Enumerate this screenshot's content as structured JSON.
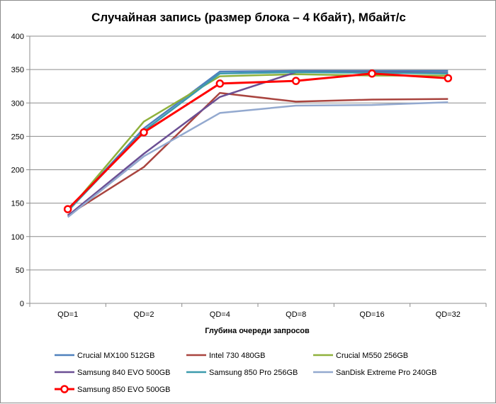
{
  "chart_data": {
    "type": "line",
    "title": "Случайная запись (размер блока – 4 Кбайт), Мбайт/с",
    "xlabel": "Глубина очереди запросов",
    "ylabel": "",
    "categories": [
      "QD=1",
      "QD=2",
      "QD=4",
      "QD=8",
      "QD=16",
      "QD=32"
    ],
    "ylim": [
      0,
      400
    ],
    "yticks": [
      0,
      50,
      100,
      150,
      200,
      250,
      300,
      350,
      400
    ],
    "grid": true,
    "legend_position": "bottom",
    "series": [
      {
        "name": "Crucial MX100 512GB",
        "color": "#4f81bd",
        "values": [
          139,
          262,
          347,
          348,
          348,
          348
        ]
      },
      {
        "name": "Intel 730 480GB",
        "color": "#a9443f",
        "values": [
          132,
          204,
          315,
          302,
          305,
          306
        ]
      },
      {
        "name": "Crucial M550 256GB",
        "color": "#8fb13c",
        "values": [
          138,
          272,
          340,
          343,
          341,
          341
        ]
      },
      {
        "name": "Samsung 840 EVO 500GB",
        "color": "#6b4f94",
        "values": [
          131,
          224,
          309,
          346,
          346,
          345
        ]
      },
      {
        "name": "Samsung 850 Pro 256GB",
        "color": "#3c9bad",
        "values": [
          138,
          258,
          344,
          346,
          345,
          344
        ]
      },
      {
        "name": "SanDisk Extreme Pro 240GB",
        "color": "#93a9cf",
        "values": [
          129,
          220,
          285,
          296,
          297,
          301
        ]
      },
      {
        "name": "Samsung 850 EVO 500GB",
        "color": "#ff0000",
        "values": [
          141,
          256,
          329,
          333,
          344,
          337
        ],
        "markers": true
      }
    ]
  }
}
